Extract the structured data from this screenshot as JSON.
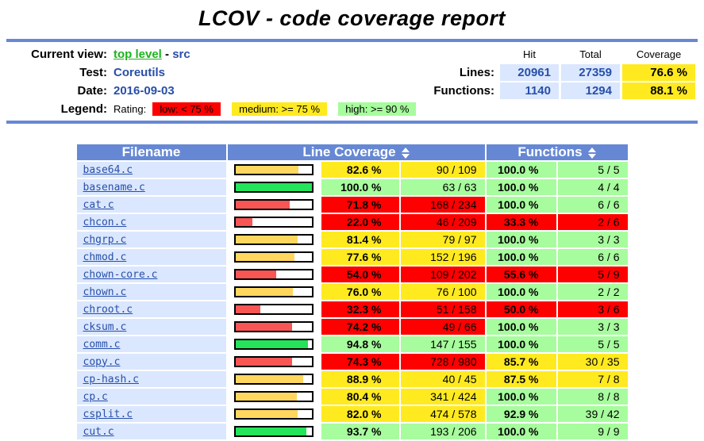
{
  "title": "LCOV - code coverage report",
  "colors": {
    "accent_blue": "#6688D4",
    "header_cell_blue": "#DAE7FE",
    "value_blue": "#284FA8",
    "link_green": "#1DB31D",
    "rating_low": "#FF0000",
    "rating_medium": "#FFEA20",
    "rating_high": "#A7FC9D"
  },
  "header": {
    "current_view_label": "Current view:",
    "current_view_link": "top level",
    "current_view_sep": "-",
    "current_view_current": "src",
    "test_label": "Test:",
    "test_value": "Coreutils",
    "date_label": "Date:",
    "date_value": "2016-09-03",
    "legend_label": "Legend:",
    "rating_label": "Rating:",
    "legend_low": "low: < 75 %",
    "legend_med": "medium: >= 75 %",
    "legend_high": "high: >= 90 %",
    "stats": {
      "col_hit": "Hit",
      "col_total": "Total",
      "col_coverage": "Coverage",
      "lines_label": "Lines:",
      "lines_hit": "20961",
      "lines_total": "27359",
      "lines_coverage": "76.6 %",
      "functions_label": "Functions:",
      "functions_hit": "1140",
      "functions_total": "1294",
      "functions_coverage": "88.1 %"
    }
  },
  "table": {
    "headers": {
      "filename": "Filename",
      "line_coverage": "Line Coverage",
      "functions": "Functions"
    },
    "rows": [
      {
        "file": "base64.c",
        "line_pct": "82.6 %",
        "line_pct_value": 82.6,
        "line_rating": "med",
        "line_ratio": "90 / 109",
        "func_pct": "100.0 %",
        "func_rating": "hi",
        "func_ratio": "5 / 5"
      },
      {
        "file": "basename.c",
        "line_pct": "100.0 %",
        "line_pct_value": 100,
        "line_rating": "hi",
        "line_ratio": "63 / 63",
        "func_pct": "100.0 %",
        "func_rating": "hi",
        "func_ratio": "4 / 4"
      },
      {
        "file": "cat.c",
        "line_pct": "71.8 %",
        "line_pct_value": 71.8,
        "line_rating": "lo",
        "line_ratio": "168 / 234",
        "func_pct": "100.0 %",
        "func_rating": "hi",
        "func_ratio": "6 / 6"
      },
      {
        "file": "chcon.c",
        "line_pct": "22.0 %",
        "line_pct_value": 22.0,
        "line_rating": "lo",
        "line_ratio": "46 / 209",
        "func_pct": "33.3 %",
        "func_rating": "lo",
        "func_ratio": "2 / 6"
      },
      {
        "file": "chgrp.c",
        "line_pct": "81.4 %",
        "line_pct_value": 81.4,
        "line_rating": "med",
        "line_ratio": "79 / 97",
        "func_pct": "100.0 %",
        "func_rating": "hi",
        "func_ratio": "3 / 3"
      },
      {
        "file": "chmod.c",
        "line_pct": "77.6 %",
        "line_pct_value": 77.6,
        "line_rating": "med",
        "line_ratio": "152 / 196",
        "func_pct": "100.0 %",
        "func_rating": "hi",
        "func_ratio": "6 / 6"
      },
      {
        "file": "chown-core.c",
        "line_pct": "54.0 %",
        "line_pct_value": 54.0,
        "line_rating": "lo",
        "line_ratio": "109 / 202",
        "func_pct": "55.6 %",
        "func_rating": "lo",
        "func_ratio": "5 / 9"
      },
      {
        "file": "chown.c",
        "line_pct": "76.0 %",
        "line_pct_value": 76.0,
        "line_rating": "med",
        "line_ratio": "76 / 100",
        "func_pct": "100.0 %",
        "func_rating": "hi",
        "func_ratio": "2 / 2"
      },
      {
        "file": "chroot.c",
        "line_pct": "32.3 %",
        "line_pct_value": 32.3,
        "line_rating": "lo",
        "line_ratio": "51 / 158",
        "func_pct": "50.0 %",
        "func_rating": "lo",
        "func_ratio": "3 / 6"
      },
      {
        "file": "cksum.c",
        "line_pct": "74.2 %",
        "line_pct_value": 74.2,
        "line_rating": "lo",
        "line_ratio": "49 / 66",
        "func_pct": "100.0 %",
        "func_rating": "hi",
        "func_ratio": "3 / 3"
      },
      {
        "file": "comm.c",
        "line_pct": "94.8 %",
        "line_pct_value": 94.8,
        "line_rating": "hi",
        "line_ratio": "147 / 155",
        "func_pct": "100.0 %",
        "func_rating": "hi",
        "func_ratio": "5 / 5"
      },
      {
        "file": "copy.c",
        "line_pct": "74.3 %",
        "line_pct_value": 74.3,
        "line_rating": "lo",
        "line_ratio": "728 / 980",
        "func_pct": "85.7 %",
        "func_rating": "med",
        "func_ratio": "30 / 35"
      },
      {
        "file": "cp-hash.c",
        "line_pct": "88.9 %",
        "line_pct_value": 88.9,
        "line_rating": "med",
        "line_ratio": "40 / 45",
        "func_pct": "87.5 %",
        "func_rating": "med",
        "func_ratio": "7 / 8"
      },
      {
        "file": "cp.c",
        "line_pct": "80.4 %",
        "line_pct_value": 80.4,
        "line_rating": "med",
        "line_ratio": "341 / 424",
        "func_pct": "100.0 %",
        "func_rating": "hi",
        "func_ratio": "8 / 8"
      },
      {
        "file": "csplit.c",
        "line_pct": "82.0 %",
        "line_pct_value": 82.0,
        "line_rating": "med",
        "line_ratio": "474 / 578",
        "func_pct": "92.9 %",
        "func_rating": "hi",
        "func_ratio": "39 / 42"
      },
      {
        "file": "cut.c",
        "line_pct": "93.7 %",
        "line_pct_value": 93.7,
        "line_rating": "hi",
        "line_ratio": "193 / 206",
        "func_pct": "100.0 %",
        "func_rating": "hi",
        "func_ratio": "9 / 9"
      }
    ]
  }
}
